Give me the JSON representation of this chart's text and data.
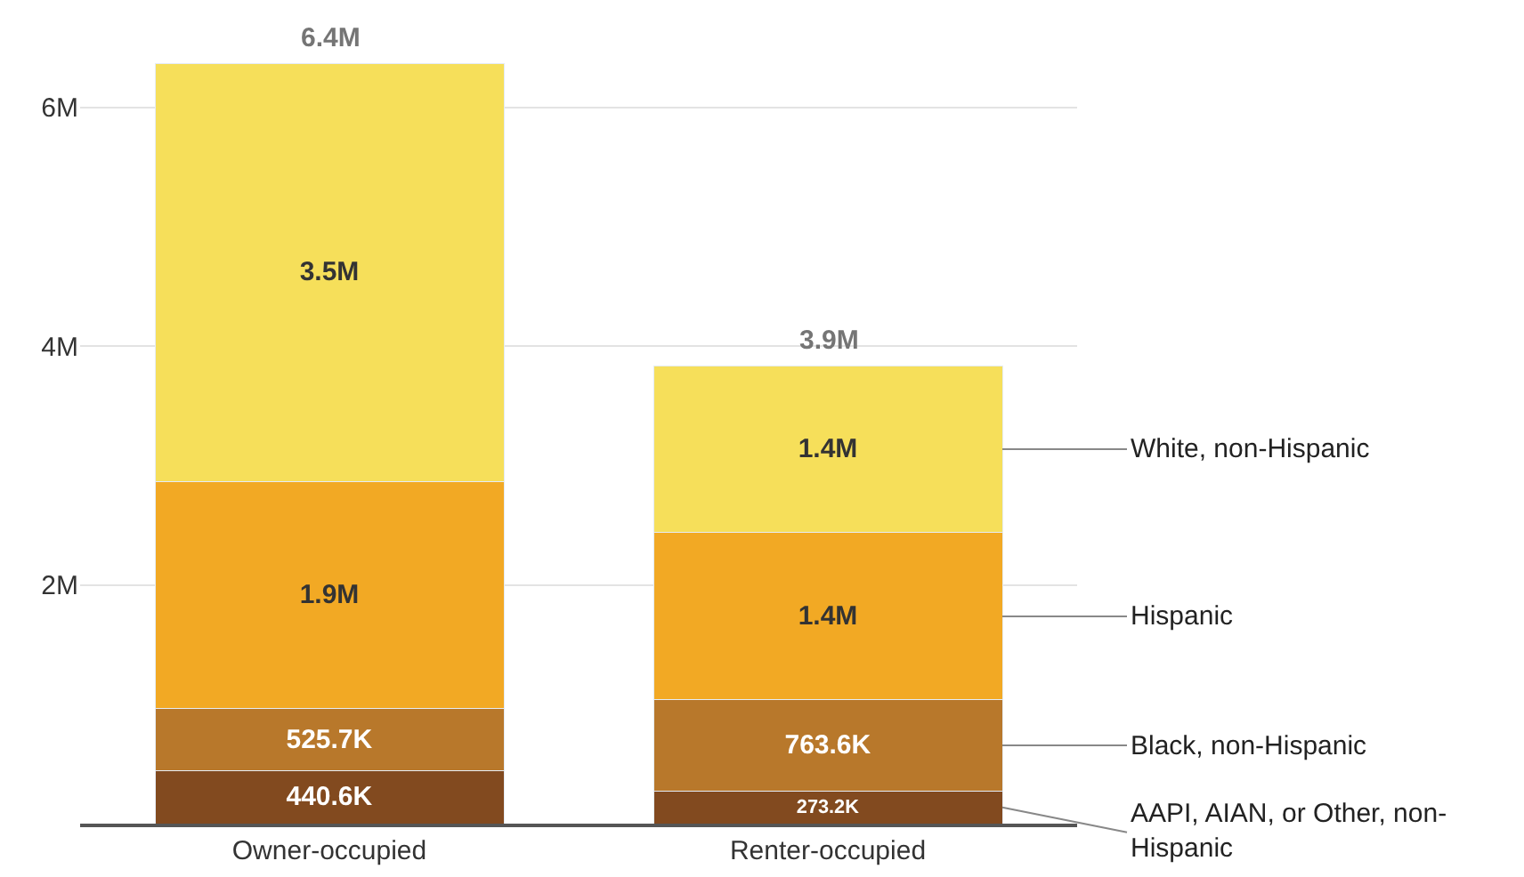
{
  "chart_data": {
    "type": "bar",
    "stacked": true,
    "categories": [
      "Owner-occupied",
      "Renter-occupied"
    ],
    "series": [
      {
        "name": "AAPI, AIAN, or Other, non-Hispanic",
        "color": "#824a1f",
        "values": [
          440600,
          273200
        ],
        "value_labels": [
          "440.6K",
          "273.2K"
        ]
      },
      {
        "name": "Black, non-Hispanic",
        "color": "#b8782b",
        "values": [
          525700,
          763600
        ],
        "value_labels": [
          "525.7K",
          "763.6K"
        ]
      },
      {
        "name": "Hispanic",
        "color": "#f2a924",
        "values": [
          1900000,
          1400000
        ],
        "value_labels": [
          "1.9M",
          "1.4M"
        ]
      },
      {
        "name": "White, non-Hispanic",
        "color": "#f6df5a",
        "values": [
          3500000,
          1400000
        ],
        "value_labels": [
          "3.5M",
          "1.4M"
        ]
      }
    ],
    "totals": [
      "6.4M",
      "3.9M"
    ],
    "ylim": [
      0,
      6900000
    ],
    "yticks": [
      {
        "value": 0,
        "label": null
      },
      {
        "value": 2000000,
        "label": "2M"
      },
      {
        "value": 4000000,
        "label": "4M"
      },
      {
        "value": 6000000,
        "label": "6M"
      }
    ],
    "grid": "y"
  }
}
